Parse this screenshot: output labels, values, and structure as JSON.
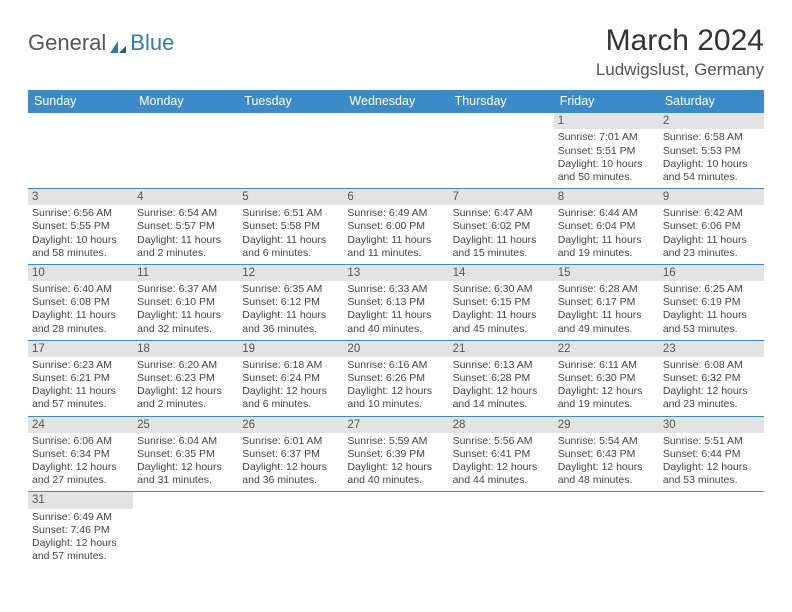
{
  "brand": {
    "general": "General",
    "blue": "Blue"
  },
  "title": "March 2024",
  "location": "Ludwigslust, Germany",
  "colors": {
    "header_bg": "#3b8bc9",
    "header_fg": "#ffffff",
    "daybar_bg": "#e3e3e3",
    "rule": "#3b8bc9",
    "text": "#444444"
  },
  "fonts": {
    "title_pt": 30,
    "loc_pt": 17,
    "head_pt": 12.5,
    "cell_pt": 10.5
  },
  "weekdays": [
    "Sunday",
    "Monday",
    "Tuesday",
    "Wednesday",
    "Thursday",
    "Friday",
    "Saturday"
  ],
  "weeks": [
    [
      null,
      null,
      null,
      null,
      null,
      {
        "d": "1",
        "sr": "Sunrise: 7:01 AM",
        "ss": "Sunset: 5:51 PM",
        "dl1": "Daylight: 10 hours",
        "dl2": "and 50 minutes."
      },
      {
        "d": "2",
        "sr": "Sunrise: 6:58 AM",
        "ss": "Sunset: 5:53 PM",
        "dl1": "Daylight: 10 hours",
        "dl2": "and 54 minutes."
      }
    ],
    [
      {
        "d": "3",
        "sr": "Sunrise: 6:56 AM",
        "ss": "Sunset: 5:55 PM",
        "dl1": "Daylight: 10 hours",
        "dl2": "and 58 minutes."
      },
      {
        "d": "4",
        "sr": "Sunrise: 6:54 AM",
        "ss": "Sunset: 5:57 PM",
        "dl1": "Daylight: 11 hours",
        "dl2": "and 2 minutes."
      },
      {
        "d": "5",
        "sr": "Sunrise: 6:51 AM",
        "ss": "Sunset: 5:58 PM",
        "dl1": "Daylight: 11 hours",
        "dl2": "and 6 minutes."
      },
      {
        "d": "6",
        "sr": "Sunrise: 6:49 AM",
        "ss": "Sunset: 6:00 PM",
        "dl1": "Daylight: 11 hours",
        "dl2": "and 11 minutes."
      },
      {
        "d": "7",
        "sr": "Sunrise: 6:47 AM",
        "ss": "Sunset: 6:02 PM",
        "dl1": "Daylight: 11 hours",
        "dl2": "and 15 minutes."
      },
      {
        "d": "8",
        "sr": "Sunrise: 6:44 AM",
        "ss": "Sunset: 6:04 PM",
        "dl1": "Daylight: 11 hours",
        "dl2": "and 19 minutes."
      },
      {
        "d": "9",
        "sr": "Sunrise: 6:42 AM",
        "ss": "Sunset: 6:06 PM",
        "dl1": "Daylight: 11 hours",
        "dl2": "and 23 minutes."
      }
    ],
    [
      {
        "d": "10",
        "sr": "Sunrise: 6:40 AM",
        "ss": "Sunset: 6:08 PM",
        "dl1": "Daylight: 11 hours",
        "dl2": "and 28 minutes."
      },
      {
        "d": "11",
        "sr": "Sunrise: 6:37 AM",
        "ss": "Sunset: 6:10 PM",
        "dl1": "Daylight: 11 hours",
        "dl2": "and 32 minutes."
      },
      {
        "d": "12",
        "sr": "Sunrise: 6:35 AM",
        "ss": "Sunset: 6:12 PM",
        "dl1": "Daylight: 11 hours",
        "dl2": "and 36 minutes."
      },
      {
        "d": "13",
        "sr": "Sunrise: 6:33 AM",
        "ss": "Sunset: 6:13 PM",
        "dl1": "Daylight: 11 hours",
        "dl2": "and 40 minutes."
      },
      {
        "d": "14",
        "sr": "Sunrise: 6:30 AM",
        "ss": "Sunset: 6:15 PM",
        "dl1": "Daylight: 11 hours",
        "dl2": "and 45 minutes."
      },
      {
        "d": "15",
        "sr": "Sunrise: 6:28 AM",
        "ss": "Sunset: 6:17 PM",
        "dl1": "Daylight: 11 hours",
        "dl2": "and 49 minutes."
      },
      {
        "d": "16",
        "sr": "Sunrise: 6:25 AM",
        "ss": "Sunset: 6:19 PM",
        "dl1": "Daylight: 11 hours",
        "dl2": "and 53 minutes."
      }
    ],
    [
      {
        "d": "17",
        "sr": "Sunrise: 6:23 AM",
        "ss": "Sunset: 6:21 PM",
        "dl1": "Daylight: 11 hours",
        "dl2": "and 57 minutes."
      },
      {
        "d": "18",
        "sr": "Sunrise: 6:20 AM",
        "ss": "Sunset: 6:23 PM",
        "dl1": "Daylight: 12 hours",
        "dl2": "and 2 minutes."
      },
      {
        "d": "19",
        "sr": "Sunrise: 6:18 AM",
        "ss": "Sunset: 6:24 PM",
        "dl1": "Daylight: 12 hours",
        "dl2": "and 6 minutes."
      },
      {
        "d": "20",
        "sr": "Sunrise: 6:16 AM",
        "ss": "Sunset: 6:26 PM",
        "dl1": "Daylight: 12 hours",
        "dl2": "and 10 minutes."
      },
      {
        "d": "21",
        "sr": "Sunrise: 6:13 AM",
        "ss": "Sunset: 6:28 PM",
        "dl1": "Daylight: 12 hours",
        "dl2": "and 14 minutes."
      },
      {
        "d": "22",
        "sr": "Sunrise: 6:11 AM",
        "ss": "Sunset: 6:30 PM",
        "dl1": "Daylight: 12 hours",
        "dl2": "and 19 minutes."
      },
      {
        "d": "23",
        "sr": "Sunrise: 6:08 AM",
        "ss": "Sunset: 6:32 PM",
        "dl1": "Daylight: 12 hours",
        "dl2": "and 23 minutes."
      }
    ],
    [
      {
        "d": "24",
        "sr": "Sunrise: 6:06 AM",
        "ss": "Sunset: 6:34 PM",
        "dl1": "Daylight: 12 hours",
        "dl2": "and 27 minutes."
      },
      {
        "d": "25",
        "sr": "Sunrise: 6:04 AM",
        "ss": "Sunset: 6:35 PM",
        "dl1": "Daylight: 12 hours",
        "dl2": "and 31 minutes."
      },
      {
        "d": "26",
        "sr": "Sunrise: 6:01 AM",
        "ss": "Sunset: 6:37 PM",
        "dl1": "Daylight: 12 hours",
        "dl2": "and 36 minutes."
      },
      {
        "d": "27",
        "sr": "Sunrise: 5:59 AM",
        "ss": "Sunset: 6:39 PM",
        "dl1": "Daylight: 12 hours",
        "dl2": "and 40 minutes."
      },
      {
        "d": "28",
        "sr": "Sunrise: 5:56 AM",
        "ss": "Sunset: 6:41 PM",
        "dl1": "Daylight: 12 hours",
        "dl2": "and 44 minutes."
      },
      {
        "d": "29",
        "sr": "Sunrise: 5:54 AM",
        "ss": "Sunset: 6:43 PM",
        "dl1": "Daylight: 12 hours",
        "dl2": "and 48 minutes."
      },
      {
        "d": "30",
        "sr": "Sunrise: 5:51 AM",
        "ss": "Sunset: 6:44 PM",
        "dl1": "Daylight: 12 hours",
        "dl2": "and 53 minutes."
      }
    ],
    [
      {
        "d": "31",
        "sr": "Sunrise: 6:49 AM",
        "ss": "Sunset: 7:46 PM",
        "dl1": "Daylight: 12 hours",
        "dl2": "and 57 minutes."
      },
      null,
      null,
      null,
      null,
      null,
      null
    ]
  ]
}
